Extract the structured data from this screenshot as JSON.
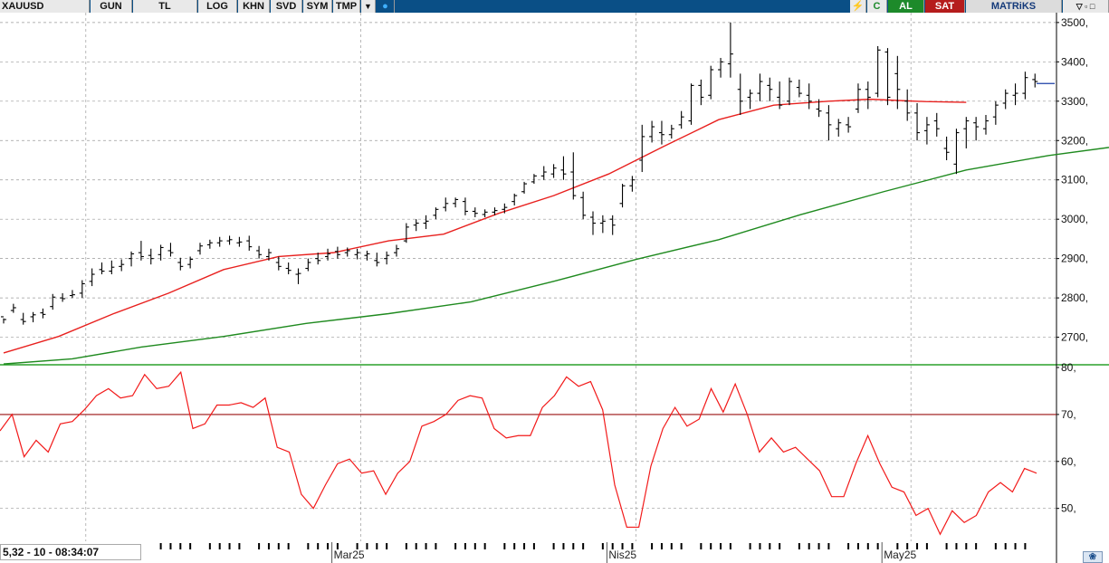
{
  "toolbar": {
    "symbol": "XAUUSD",
    "period": "GUN",
    "currency": "TL",
    "log": "LOG",
    "khn": "KHN",
    "svd": "SVD",
    "sym": "SYM",
    "tmp": "TMP",
    "al": "AL",
    "sat": "SAT",
    "brand": "MATRiKS",
    "icons": [
      "dropdown-icon",
      "twitter-icon",
      "flash-icon",
      "refresh-icon",
      "window-controls-icon"
    ]
  },
  "status_text": "5,32 - 10 - 08:34:07",
  "colors": {
    "price_bar": "#000000",
    "ma_fast": "#e8201e",
    "ma_slow": "#1f8a1f",
    "rsi": "#f21a1a",
    "rsi_threshold": "#9b1010",
    "separator": "#2aa02a",
    "grid": "#9a9a9a"
  },
  "chart_data": [
    {
      "type": "ohlc",
      "ylim": [
        2630,
        3525
      ],
      "y_ticks": [
        3500,
        3400,
        3300,
        3200,
        3100,
        3000,
        2900,
        2800,
        2700
      ],
      "y_tick_labels": [
        "3500,",
        "3400,",
        "3300,",
        "3200,",
        "3100,",
        "3000,",
        "2900,",
        "2800,",
        "2700,"
      ],
      "x_date_labels": [
        {
          "label": "Mar25",
          "index": 36
        },
        {
          "label": "Nis25",
          "index": 64
        },
        {
          "label": "May25",
          "index": 92
        }
      ],
      "last_price": 3345,
      "ohlc": [
        [
          2752,
          2748,
          2735,
          2745
        ],
        [
          2768,
          2785,
          2762,
          2775
        ],
        [
          2745,
          2762,
          2732,
          2740
        ],
        [
          2752,
          2764,
          2738,
          2757
        ],
        [
          2762,
          2773,
          2748,
          2758
        ],
        [
          2778,
          2810,
          2770,
          2802
        ],
        [
          2800,
          2812,
          2790,
          2798
        ],
        [
          2806,
          2820,
          2800,
          2808
        ],
        [
          2812,
          2845,
          2800,
          2836
        ],
        [
          2842,
          2875,
          2830,
          2860
        ],
        [
          2872,
          2890,
          2860,
          2868
        ],
        [
          2868,
          2895,
          2860,
          2878
        ],
        [
          2880,
          2898,
          2868,
          2885
        ],
        [
          2900,
          2918,
          2880,
          2912
        ],
        [
          2915,
          2945,
          2895,
          2905
        ],
        [
          2908,
          2925,
          2885,
          2900
        ],
        [
          2910,
          2935,
          2895,
          2928
        ],
        [
          2920,
          2940,
          2905,
          2915
        ],
        [
          2890,
          2902,
          2870,
          2880
        ],
        [
          2885,
          2905,
          2875,
          2898
        ],
        [
          2920,
          2940,
          2910,
          2932
        ],
        [
          2935,
          2948,
          2925,
          2940
        ],
        [
          2940,
          2955,
          2930,
          2945
        ],
        [
          2945,
          2958,
          2935,
          2948
        ],
        [
          2940,
          2955,
          2930,
          2942
        ],
        [
          2945,
          2958,
          2920,
          2930
        ],
        [
          2920,
          2932,
          2900,
          2910
        ],
        [
          2905,
          2925,
          2895,
          2915
        ],
        [
          2890,
          2905,
          2870,
          2880
        ],
        [
          2875,
          2890,
          2860,
          2870
        ],
        [
          2860,
          2875,
          2835,
          2862
        ],
        [
          2875,
          2900,
          2868,
          2890
        ],
        [
          2900,
          2915,
          2885,
          2895
        ],
        [
          2905,
          2925,
          2895,
          2912
        ],
        [
          2918,
          2930,
          2900,
          2910
        ],
        [
          2915,
          2928,
          2905,
          2920
        ],
        [
          2910,
          2925,
          2898,
          2915
        ],
        [
          2908,
          2920,
          2895,
          2912
        ],
        [
          2895,
          2915,
          2880,
          2890
        ],
        [
          2900,
          2918,
          2885,
          2908
        ],
        [
          2915,
          2935,
          2905,
          2925
        ],
        [
          2945,
          2990,
          2940,
          2980
        ],
        [
          2985,
          3000,
          2970,
          2990
        ],
        [
          2990,
          3010,
          2975,
          2995
        ],
        [
          3010,
          3030,
          3000,
          3025
        ],
        [
          3030,
          3055,
          3020,
          3040
        ],
        [
          3040,
          3055,
          3030,
          3050
        ],
        [
          3045,
          3055,
          3010,
          3020
        ],
        [
          3020,
          3030,
          3005,
          3015
        ],
        [
          3012,
          3025,
          3005,
          3018
        ],
        [
          3018,
          3030,
          3010,
          3022
        ],
        [
          3025,
          3040,
          3015,
          3030
        ],
        [
          3045,
          3065,
          3035,
          3060
        ],
        [
          3070,
          3095,
          3065,
          3090
        ],
        [
          3095,
          3115,
          3090,
          3110
        ],
        [
          3110,
          3135,
          3100,
          3120
        ],
        [
          3115,
          3140,
          3105,
          3130
        ],
        [
          3125,
          3160,
          3100,
          3115
        ],
        [
          3120,
          3170,
          3050,
          3060
        ],
        [
          3055,
          3070,
          3000,
          3010
        ],
        [
          3005,
          3020,
          2960,
          2990
        ],
        [
          2990,
          3010,
          2965,
          2995
        ],
        [
          3000,
          3010,
          2960,
          2985
        ],
        [
          3040,
          3090,
          3030,
          3085
        ],
        [
          3085,
          3110,
          3070,
          3100
        ],
        [
          3150,
          3240,
          3120,
          3210
        ],
        [
          3210,
          3250,
          3195,
          3235
        ],
        [
          3220,
          3250,
          3190,
          3215
        ],
        [
          3215,
          3240,
          3205,
          3230
        ],
        [
          3240,
          3275,
          3230,
          3260
        ],
        [
          3250,
          3345,
          3240,
          3340
        ],
        [
          3340,
          3355,
          3290,
          3310
        ],
        [
          3315,
          3390,
          3305,
          3380
        ],
        [
          3380,
          3410,
          3360,
          3400
        ],
        [
          3395,
          3500,
          3360,
          3420
        ],
        [
          3330,
          3370,
          3265,
          3300
        ],
        [
          3310,
          3330,
          3280,
          3320
        ],
        [
          3320,
          3370,
          3300,
          3350
        ],
        [
          3340,
          3360,
          3300,
          3330
        ],
        [
          3310,
          3350,
          3280,
          3290
        ],
        [
          3300,
          3360,
          3290,
          3350
        ],
        [
          3335,
          3355,
          3310,
          3320
        ],
        [
          3315,
          3345,
          3280,
          3300
        ],
        [
          3280,
          3305,
          3260,
          3275
        ],
        [
          3270,
          3290,
          3200,
          3240
        ],
        [
          3230,
          3255,
          3210,
          3245
        ],
        [
          3240,
          3260,
          3220,
          3235
        ],
        [
          3280,
          3345,
          3270,
          3330
        ],
        [
          3330,
          3350,
          3280,
          3310
        ],
        [
          3320,
          3440,
          3310,
          3430
        ],
        [
          3425,
          3435,
          3290,
          3310
        ],
        [
          3370,
          3415,
          3280,
          3330
        ],
        [
          3300,
          3330,
          3250,
          3270
        ],
        [
          3270,
          3295,
          3200,
          3220
        ],
        [
          3225,
          3260,
          3190,
          3240
        ],
        [
          3250,
          3270,
          3210,
          3230
        ],
        [
          3180,
          3210,
          3150,
          3170
        ],
        [
          3140,
          3230,
          3115,
          3220
        ],
        [
          3230,
          3260,
          3180,
          3250
        ],
        [
          3245,
          3260,
          3200,
          3235
        ],
        [
          3230,
          3265,
          3215,
          3250
        ],
        [
          3260,
          3300,
          3240,
          3290
        ],
        [
          3295,
          3330,
          3280,
          3320
        ],
        [
          3315,
          3345,
          3290,
          3320
        ],
        [
          3320,
          3375,
          3305,
          3360
        ],
        [
          3355,
          3370,
          3335,
          3350
        ]
      ],
      "series": [
        {
          "name": "",
          "color_key": "ma_fast",
          "values": [
            [
              0,
              2660
            ],
            [
              8,
              2702
            ],
            [
              16,
              2760
            ],
            [
              24,
              2812
            ],
            [
              32,
              2872
            ],
            [
              40,
              2905
            ],
            [
              48,
              2915
            ],
            [
              56,
              2945
            ],
            [
              64,
              2962
            ],
            [
              72,
              3015
            ],
            [
              80,
              3060
            ],
            [
              88,
              3115
            ],
            [
              96,
              3185
            ],
            [
              104,
              3253
            ],
            [
              112,
              3290
            ],
            [
              120,
              3300
            ],
            [
              126,
              3305
            ],
            [
              134,
              3299
            ],
            [
              140,
              3297
            ]
          ]
        },
        {
          "name": "",
          "color_key": "ma_slow",
          "values": [
            [
              0,
              2632
            ],
            [
              10,
              2645
            ],
            [
              20,
              2675
            ],
            [
              32,
              2702
            ],
            [
              44,
              2735
            ],
            [
              56,
              2760
            ],
            [
              68,
              2790
            ],
            [
              80,
              2842
            ],
            [
              92,
              2898
            ],
            [
              104,
              2948
            ],
            [
              116,
              3012
            ],
            [
              128,
              3070
            ],
            [
              140,
              3125
            ],
            [
              152,
              3162
            ],
            [
              164,
              3190
            ]
          ]
        }
      ]
    },
    {
      "type": "line",
      "ylim": [
        43,
        80
      ],
      "y_ticks": [
        80,
        70,
        60,
        50
      ],
      "y_tick_labels": [
        "80,",
        "70,",
        "60,",
        "50,"
      ],
      "threshold": 70,
      "series": [
        {
          "name": "",
          "color_key": "rsi",
          "values": [
            66.5,
            70,
            61,
            64.5,
            62,
            68,
            68.5,
            71,
            74,
            75.5,
            73.5,
            74,
            78.5,
            75.5,
            76,
            79,
            67,
            68,
            72,
            72,
            72.5,
            71.5,
            73.5,
            63,
            62,
            53,
            50,
            55,
            59.5,
            60.5,
            57.5,
            58,
            53,
            57.5,
            60,
            67.5,
            68.5,
            70,
            73,
            74,
            73.5,
            67,
            65,
            65.5,
            65.5,
            71.5,
            74,
            78,
            76,
            77,
            71,
            55,
            46,
            46,
            59,
            67,
            71.5,
            67.5,
            69,
            75.5,
            70.5,
            76.5,
            70,
            62,
            65,
            62,
            63,
            60.5,
            58,
            52.5,
            52.5,
            59.5,
            65.5,
            59.5,
            54.5,
            53.5,
            48.5,
            50,
            44.5,
            49.5,
            47,
            48.5,
            53.5,
            55.5,
            53.5,
            58.5,
            57.5
          ]
        }
      ]
    }
  ]
}
